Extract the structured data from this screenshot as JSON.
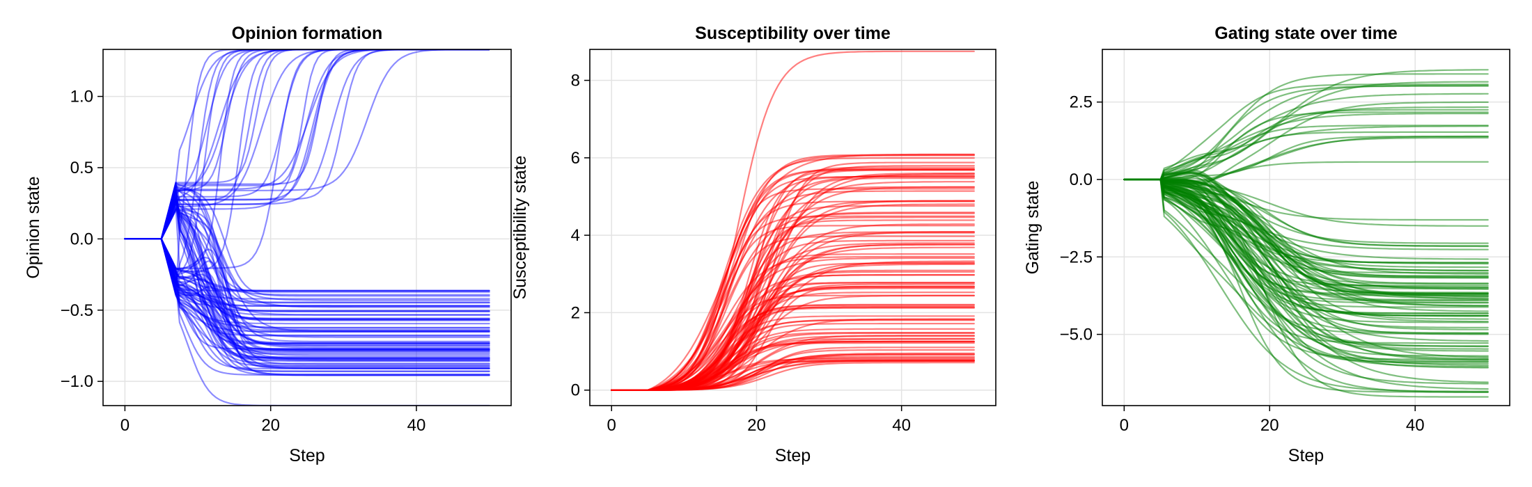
{
  "chart_data": [
    {
      "type": "line",
      "title": "Opinion formation",
      "xlabel": "Step",
      "ylabel": "Opinion state",
      "xlim": [
        -3,
        53
      ],
      "ylim": [
        -1.17,
        1.33
      ],
      "xticks": [
        0,
        20,
        40
      ],
      "xtick_labels": [
        "0",
        "20",
        "40"
      ],
      "yticks": [
        -1.0,
        -0.5,
        0.0,
        0.5,
        1.0
      ],
      "ytick_labels": [
        "−1.0",
        "−0.5",
        "0.0",
        "0.5",
        "1.0"
      ],
      "grid": true,
      "color": "#0000ff",
      "alpha": 0.45,
      "series_count": 100,
      "x_range": [
        0,
        50
      ],
      "onset_step": 5,
      "upper_asymptote": 1.33,
      "lower_final_range": [
        -0.95,
        -0.34
      ],
      "lowest_final": -1.17,
      "peak_at_step_7": [
        -0.4,
        0.38
      ]
    },
    {
      "type": "line",
      "title": "Susceptibility over time",
      "xlabel": "Step",
      "ylabel": "Susceptibility state",
      "xlim": [
        -3,
        53
      ],
      "ylim": [
        -0.4,
        8.8
      ],
      "xticks": [
        0,
        20,
        40
      ],
      "xtick_labels": [
        "0",
        "20",
        "40"
      ],
      "yticks": [
        0,
        2,
        4,
        6,
        8
      ],
      "ytick_labels": [
        "0",
        "2",
        "4",
        "6",
        "8"
      ],
      "grid": true,
      "color": "#ff0000",
      "alpha": 0.5,
      "series_count": 100,
      "x_range": [
        0,
        50
      ],
      "onset_step": 5,
      "final_range": [
        0.6,
        6.1
      ],
      "max_final": 8.75
    },
    {
      "type": "line",
      "title": "Gating state over time",
      "xlabel": "Step",
      "ylabel": "Gating state",
      "xlim": [
        -3,
        53
      ],
      "ylim": [
        -7.3,
        4.2
      ],
      "xticks": [
        0,
        20,
        40
      ],
      "xtick_labels": [
        "0",
        "20",
        "40"
      ],
      "yticks": [
        -5.0,
        -2.5,
        0.0,
        2.5
      ],
      "ytick_labels": [
        "−5.0",
        "−2.5",
        "0.0",
        "2.5"
      ],
      "grid": true,
      "color": "#008000",
      "alpha": 0.5,
      "series_count": 100,
      "x_range": [
        0,
        50
      ],
      "onset_step": 5,
      "final_range": [
        -7.1,
        4.0
      ]
    }
  ]
}
